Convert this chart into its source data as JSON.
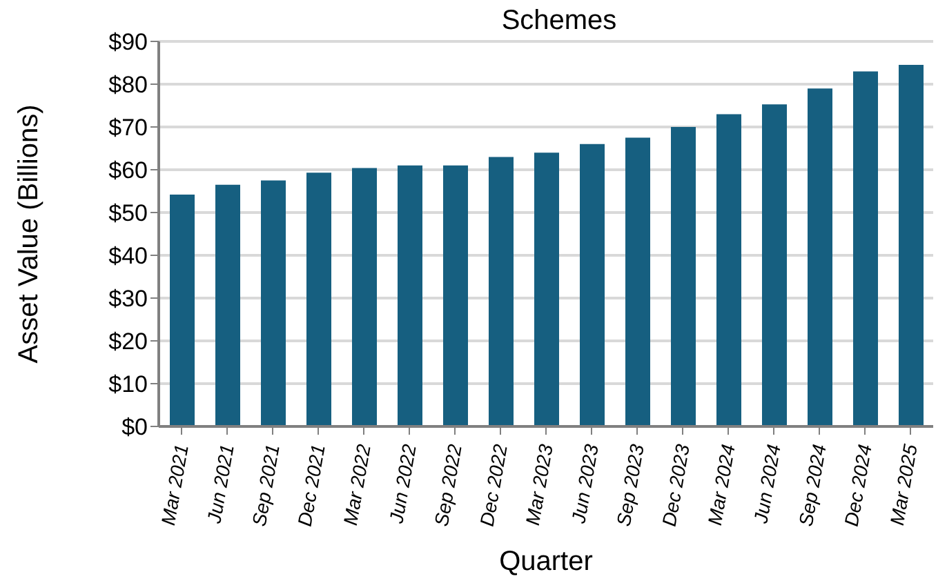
{
  "chart_data": {
    "type": "bar",
    "title": "Schemes",
    "xlabel": "Quarter",
    "ylabel": "Asset Value (Billions)",
    "categories": [
      "Mar 2021",
      "Jun 2021",
      "Sep 2021",
      "Dec 2021",
      "Mar 2022",
      "Jun 2022",
      "Sep 2022",
      "Dec 2022",
      "Mar 2023",
      "Jun 2023",
      "Sep 2023",
      "Dec 2023",
      "Mar 2024",
      "Jun 2024",
      "Sep 2024",
      "Dec 2024",
      "Mar 2025"
    ],
    "values": [
      54.2,
      56.5,
      57.5,
      59.3,
      60.4,
      61,
      61,
      63,
      64,
      66,
      67.5,
      70,
      73,
      75.3,
      79,
      83,
      84.5
    ],
    "color": "#165f80",
    "ylim": [
      0,
      90
    ],
    "yticks": [
      {
        "value": 0,
        "label": "$0"
      },
      {
        "value": 10,
        "label": "$10"
      },
      {
        "value": 20,
        "label": "$20"
      },
      {
        "value": 30,
        "label": "$30"
      },
      {
        "value": 40,
        "label": "$40"
      },
      {
        "value": 50,
        "label": "$50"
      },
      {
        "value": 60,
        "label": "$60"
      },
      {
        "value": 70,
        "label": "$70"
      },
      {
        "value": 80,
        "label": "$80"
      },
      {
        "value": 90,
        "label": "$90"
      }
    ],
    "grid": "y"
  }
}
